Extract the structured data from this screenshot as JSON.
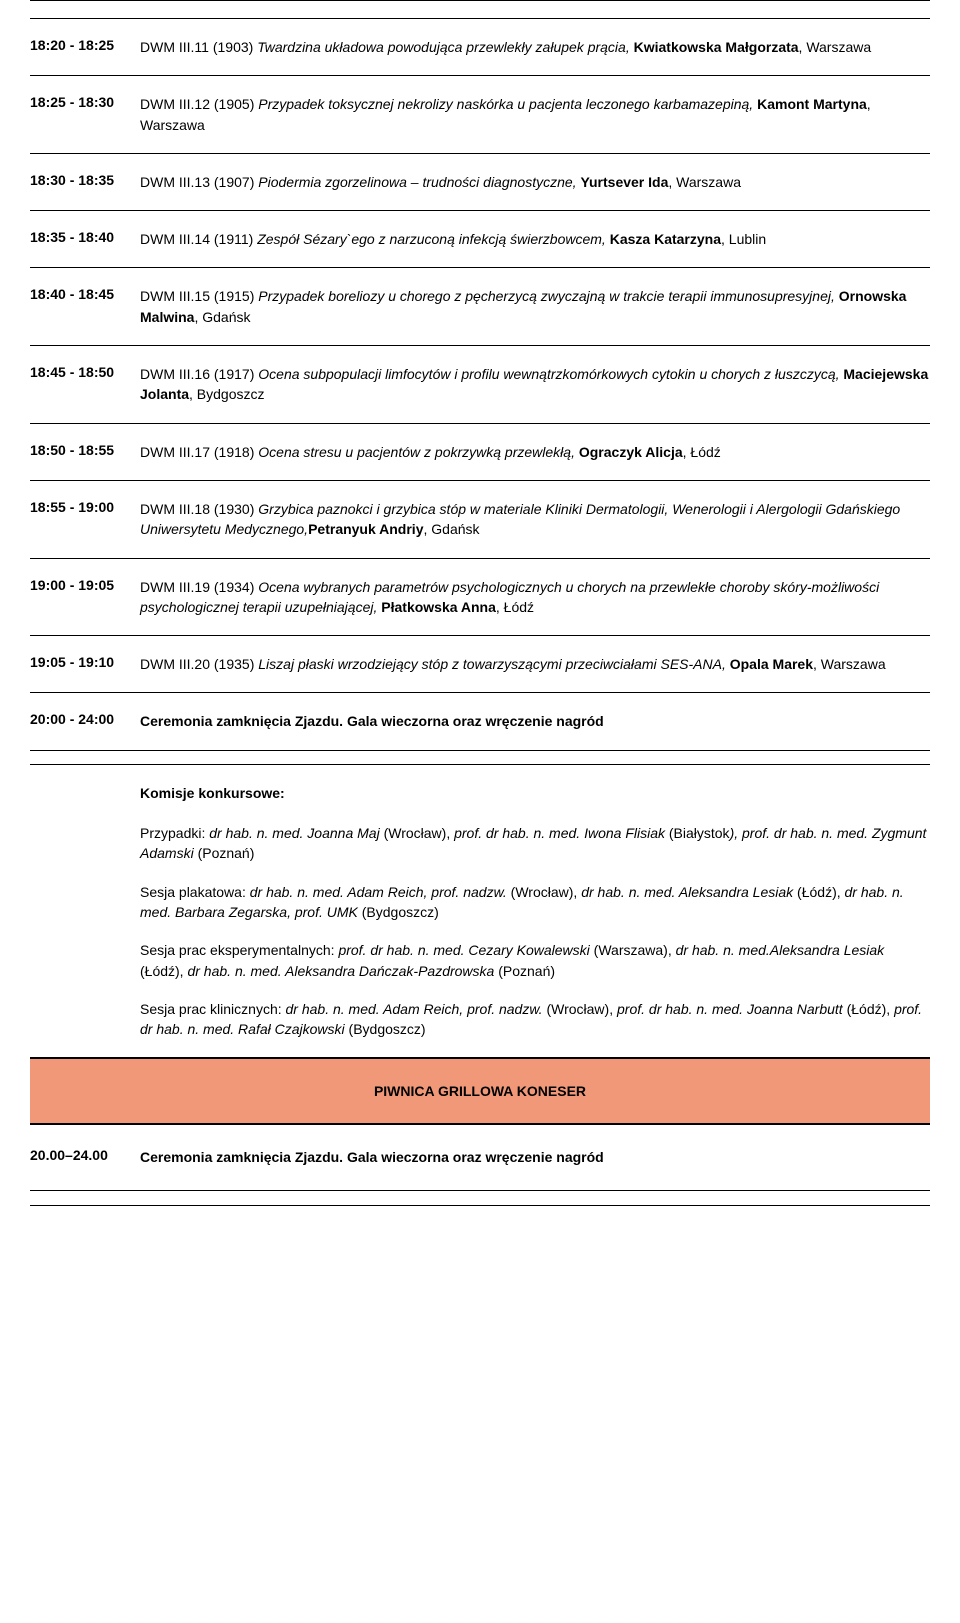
{
  "colors": {
    "background": "#ffffff",
    "text": "#000000",
    "rule": "#000000",
    "highlight_bg": "#f19879"
  },
  "rows": [
    {
      "time": "18:20 - 18:25",
      "prefix": "DWM III.11 (1903) ",
      "italic": "Twardzina układowa powodująca przewlekły załupek prącia, ",
      "bold_after": "Kwiatkowska Małgorzata",
      "tail": ", Warszawa"
    },
    {
      "time": "18:25 - 18:30",
      "prefix": "DWM III.12 (1905) ",
      "italic": "Przypadek toksycznej nekrolizy naskórka u pacjenta leczonego karbamazepiną, ",
      "bold_after": "Kamont Martyna",
      "tail": ", Warszawa"
    },
    {
      "time": "18:30 - 18:35",
      "prefix": "DWM III.13 (1907) ",
      "italic": "Piodermia zgorzelinowa – trudności diagnostyczne, ",
      "bold_after": "Yurtsever Ida",
      "tail": ", Warszawa"
    },
    {
      "time": "18:35 - 18:40",
      "prefix": "DWM III.14 (1911) ",
      "italic": "Zespół Sézary`ego z narzuconą infekcją świerzbowcem, ",
      "bold_after": "Kasza Katarzyna",
      "tail": ", Lublin"
    },
    {
      "time": "18:40 - 18:45",
      "prefix": "DWM III.15 (1915) ",
      "italic": "Przypadek boreliozy u chorego z pęcherzycą zwyczajną w trakcie terapii immunosupresyjnej, ",
      "bold_after": "Ornowska Malwina",
      "tail": ", Gdańsk"
    },
    {
      "time": "18:45 - 18:50",
      "prefix": "DWM III.16 (1917) ",
      "italic": "Ocena subpopulacji limfocytów i profilu wewnątrzkomórkowych cytokin u chorych z łuszczycą, ",
      "bold_after": "Maciejewska Jolanta",
      "tail": ", Bydgoszcz"
    },
    {
      "time": "18:50 - 18:55",
      "prefix": "DWM III.17 (1918) ",
      "italic": "Ocena stresu u pacjentów z pokrzywką przewlekłą, ",
      "bold_after": "Ograczyk Alicja",
      "tail": ", Łódź"
    },
    {
      "time": "18:55 - 19:00",
      "prefix": "DWM III.18 (1930) ",
      "italic": "Grzybica paznokci i grzybica stóp w materiale Kliniki Dermatologii, Wenerologii i Alergologii Gdańskiego Uniwersytetu Medycznego,",
      "bold_after": "Petranyuk Andriy",
      "tail": ", Gdańsk"
    },
    {
      "time": "19:00 - 19:05",
      "prefix": "DWM III.19 (1934) ",
      "italic": "Ocena wybranych parametrów psychologicznych u chorych na przewlekłe choroby skóry-możliwości psychologicznej terapii uzupełniającej, ",
      "bold_after": "Płatkowska Anna",
      "tail": ", Łódź"
    },
    {
      "time": "19:05 - 19:10",
      "prefix": "DWM III.20 (1935) ",
      "italic": "Liszaj płaski wrzodziejący stóp z towarzyszącymi przeciwciałami SES-ANA, ",
      "bold_after": "Opala Marek",
      "tail": ", Warszawa"
    }
  ],
  "ceremony1": {
    "time": "20:00 - 24:00",
    "text": "Ceremonia zamknięcia Zjazdu. Gala wieczorna oraz wręczenie nagród"
  },
  "committee": {
    "title": "Komisje konkursowe:",
    "p1_a": "Przypadki: ",
    "p1_b": "dr hab. n. med. Joanna Maj",
    "p1_c": " (Wrocław), ",
    "p1_d": "prof. dr hab. n. med. Iwona Flisiak",
    "p1_e": " (Białystok",
    "p1_f": "), prof. dr hab. n. med. Zygmunt Adamski",
    "p1_g": " (Poznań)",
    "p2_a": "Sesja plakatowa: ",
    "p2_b": "dr hab. n. med. Adam Reich, prof. nadzw.",
    "p2_c": " (Wrocław), ",
    "p2_d": "dr hab. n. med. Aleksandra Lesiak",
    "p2_e": " (Łódź), ",
    "p2_f": "dr hab. n. med. Barbara Zegarska, prof. UMK",
    "p2_g": " (Bydgoszcz)",
    "p3_a": "Sesja prac eksperymentalnych: ",
    "p3_b": "prof. dr hab. n. med. Cezary Kowalewski",
    "p3_c": " (Warszawa), ",
    "p3_d": "dr hab. n. med.Aleksandra Lesiak",
    "p3_e": " (Łódź), ",
    "p3_f": "dr hab. n. med. Aleksandra Dańczak-Pazdrowska",
    "p3_g": " (Poznań)",
    "p4_a": "Sesja prac klinicznych: ",
    "p4_b": "dr hab. n. med. Adam Reich, prof. nadzw.",
    "p4_c": " (Wrocław), ",
    "p4_d": "prof. dr hab. n. med. Joanna Narbutt",
    "p4_e": " (Łódź), ",
    "p4_f": "prof. dr hab. n. med. Rafał Czajkowski",
    "p4_g": " (Bydgoszcz)"
  },
  "venue": {
    "name": "PIWNICA GRILLOWA KONESER"
  },
  "ceremony2": {
    "time": "20.00–24.00",
    "text": "Ceremonia zamknięcia Zjazdu. Gala wieczorna oraz wręczenie nagród"
  }
}
